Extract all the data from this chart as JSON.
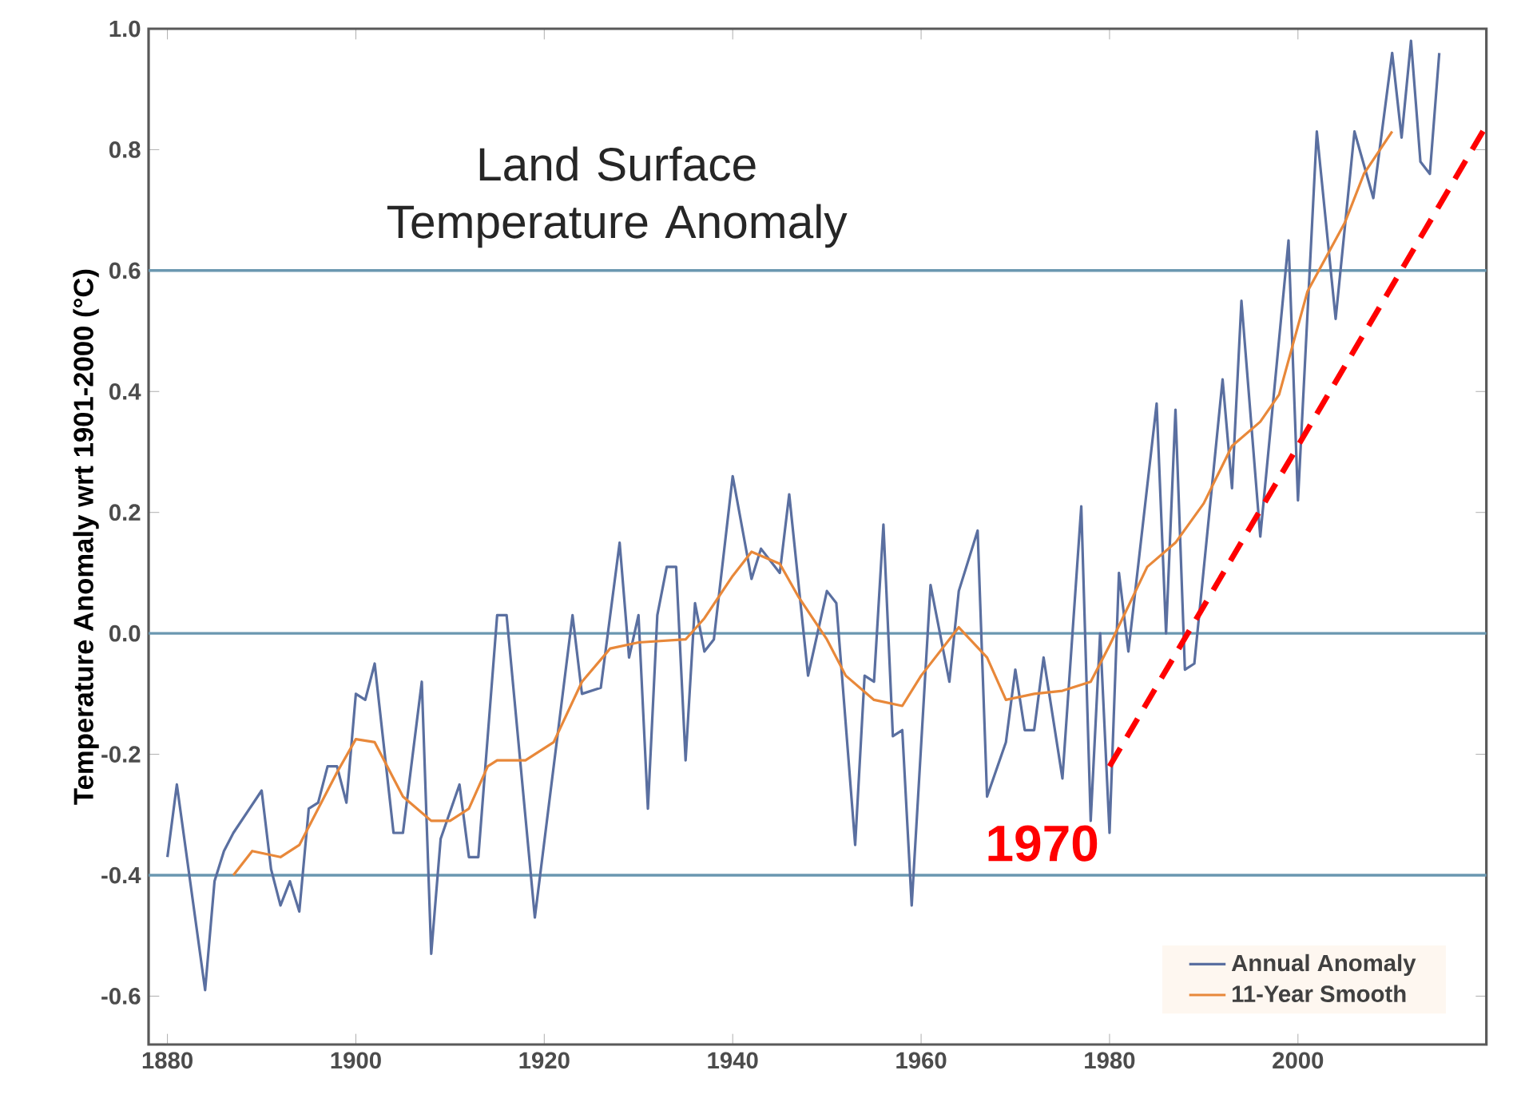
{
  "chart_data": {
    "type": "line",
    "title": "Land Surface Temperature Anomaly",
    "ylabel": "Temperature Anomaly wrt 1901-2000 (°C)",
    "xlim": [
      1878,
      2020
    ],
    "ylim": [
      -0.68,
      1.0
    ],
    "xticks": [
      1880,
      1900,
      1920,
      1940,
      1960,
      1980,
      2000
    ],
    "yticks": [
      -0.6,
      -0.4,
      -0.2,
      {
        "value": 0,
        "label": "0.0"
      },
      0.2,
      0.4,
      0.6,
      0.8,
      {
        "value": 1.0,
        "label": "1.0"
      }
    ],
    "legend": "bottom right",
    "marker": "none",
    "series": [
      {
        "name": "Annual Anomaly",
        "color": "#5a6fa0",
        "x": [
          1880,
          1881,
          1884,
          1885,
          1886,
          1887,
          1890,
          1891,
          1892,
          1893,
          1894,
          1895,
          1896,
          1897,
          1898,
          1899,
          1900,
          1901,
          1902,
          1904,
          1905,
          1907,
          1908,
          1909,
          1911,
          1912,
          1913,
          1915,
          1916,
          1919,
          1923,
          1924,
          1926,
          1928,
          1929,
          1930,
          1931,
          1932,
          1933,
          1934,
          1935,
          1936,
          1937,
          1938,
          1940,
          1942,
          1943,
          1945,
          1946,
          1948,
          1950,
          1951,
          1953,
          1954,
          1955,
          1956,
          1957,
          1958,
          1959,
          1961,
          1963,
          1964,
          1966,
          1967,
          1969,
          1970,
          1971,
          1972,
          1973,
          1975,
          1977,
          1978,
          1979,
          1980,
          1981,
          1982,
          1985,
          1986,
          1987,
          1988,
          1989,
          1992,
          1993,
          1994,
          1996,
          1999,
          2000,
          2002,
          2004,
          2006,
          2008,
          2010,
          2011,
          2012,
          2013,
          2014,
          2015
        ],
        "values": [
          -0.37,
          -0.25,
          -0.59,
          -0.41,
          -0.36,
          -0.33,
          -0.26,
          -0.39,
          -0.45,
          -0.41,
          -0.46,
          -0.29,
          -0.28,
          -0.22,
          -0.22,
          -0.28,
          -0.1,
          -0.11,
          -0.05,
          -0.33,
          -0.33,
          -0.08,
          -0.53,
          -0.34,
          -0.25,
          -0.37,
          -0.37,
          0.03,
          0.03,
          -0.47,
          0.03,
          -0.1,
          -0.09,
          0.15,
          -0.04,
          0.03,
          -0.29,
          0.03,
          0.11,
          0.11,
          -0.21,
          0.05,
          -0.03,
          -0.01,
          0.26,
          0.09,
          0.14,
          0.1,
          0.23,
          -0.07,
          0.07,
          0.05,
          -0.35,
          -0.07,
          -0.08,
          0.18,
          -0.17,
          -0.16,
          -0.45,
          0.08,
          -0.08,
          0.07,
          0.17,
          -0.27,
          -0.18,
          -0.06,
          -0.16,
          -0.16,
          -0.04,
          -0.24,
          0.21,
          -0.31,
          0.0,
          -0.33,
          0.1,
          -0.03,
          0.38,
          0.0,
          0.37,
          -0.06,
          -0.05,
          0.42,
          0.24,
          0.55,
          0.16,
          0.65,
          0.22,
          0.83,
          0.52,
          0.83,
          0.72,
          0.96,
          0.82,
          0.98,
          0.78,
          0.76,
          0.96
        ]
      },
      {
        "name": "11-Year Smooth",
        "color": "#e8883a",
        "x": [
          1887,
          1889,
          1892,
          1894,
          1898,
          1900,
          1902,
          1905,
          1908,
          1910,
          1912,
          1914,
          1915,
          1918,
          1921,
          1924,
          1927,
          1930,
          1935,
          1937,
          1940,
          1942,
          1945,
          1947,
          1950,
          1952,
          1955,
          1958,
          1960,
          1964,
          1967,
          1969,
          1972,
          1975,
          1978,
          1980,
          1984,
          1987,
          1990,
          1993,
          1996,
          1998,
          2001,
          2005,
          2007,
          2010
        ],
        "values": [
          -0.4,
          -0.36,
          -0.37,
          -0.35,
          -0.23,
          -0.175,
          -0.18,
          -0.27,
          -0.31,
          -0.31,
          -0.29,
          -0.22,
          -0.21,
          -0.21,
          -0.18,
          -0.08,
          -0.025,
          -0.015,
          -0.01,
          0.025,
          0.095,
          0.135,
          0.115,
          0.06,
          -0.01,
          -0.07,
          -0.11,
          -0.12,
          -0.07,
          0.01,
          -0.04,
          -0.11,
          -0.1,
          -0.095,
          -0.08,
          -0.02,
          0.11,
          0.15,
          0.215,
          0.31,
          0.35,
          0.395,
          0.565,
          0.68,
          0.76,
          0.83
        ]
      },
      {
        "type": "line",
        "color": "#ff0000",
        "line_style": "dashed",
        "x": [
          1980,
          2020
        ],
        "values": [
          -0.22,
          0.84
        ]
      }
    ],
    "ref_lines": [
      {
        "axis": "y",
        "value": 0.6,
        "color": "#6a97b0"
      },
      {
        "axis": "y",
        "value": 0,
        "color": "#6a97b0"
      },
      {
        "axis": "y",
        "value": -0.4,
        "color": "#6a97b0"
      }
    ],
    "annotations": [
      "1970"
    ]
  }
}
